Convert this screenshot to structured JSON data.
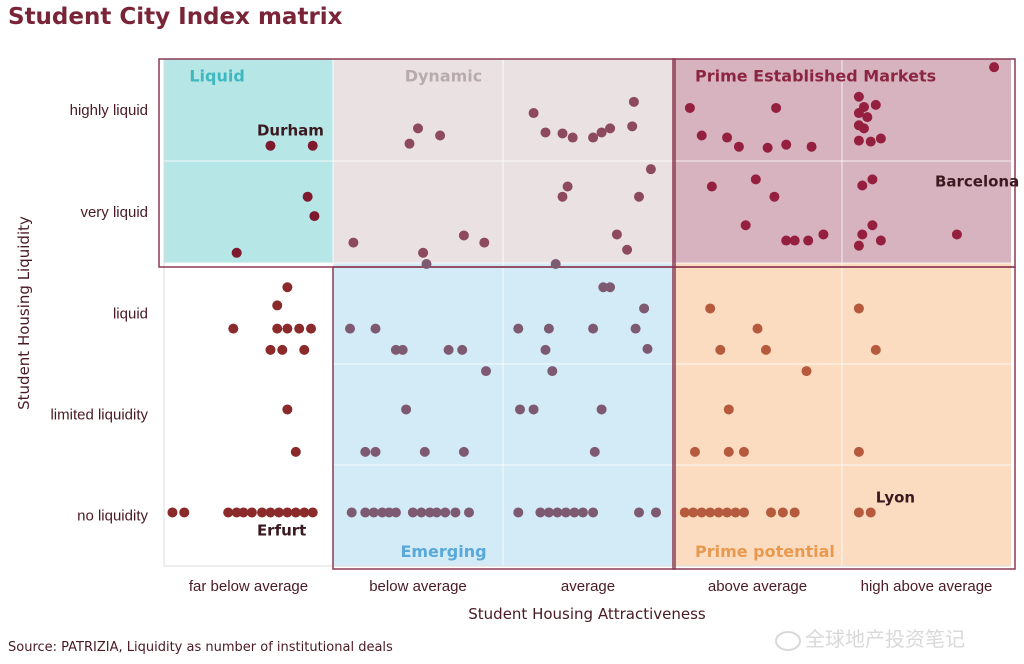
{
  "title": "Student City Index matrix",
  "source": "Source: PATRIZIA, Liquidity as number of institutional deals",
  "watermark": "全球地产投资笔记",
  "colors": {
    "liquid": "#b7e6e6",
    "dynamic": "#eae2e2",
    "prime_established": "#d7b3c0",
    "emerging": "#d3ebf7",
    "prime_potential": "#fbdcc1",
    "dot_dark": "#7e1a2e",
    "dot_rose": "#8c4a5c",
    "dot_maroon": "#941f3e",
    "dot_steel": "#7e5a72",
    "dot_orange": "#b55a3c",
    "dot_brick": "#8b2a2a",
    "frame": "#8c3a52",
    "label_liquid": "#3fb8bf",
    "label_dynamic": "#b9aab0",
    "label_prime": "#8c2540",
    "label_emerging": "#58a9da",
    "label_potential": "#e79a4f"
  },
  "chart_data": {
    "type": "scatter",
    "title": "Student City Index matrix",
    "xlabel": "Student Housing Attractiveness",
    "ylabel": "Student Housing Liquidity",
    "x_categories": [
      "far below average",
      "below average",
      "average",
      "above average",
      "high above average"
    ],
    "y_categories": [
      "highly liquid",
      "very liquid",
      "liquid",
      "limited liquidity",
      "no liquidity"
    ],
    "grid": true,
    "zones": [
      {
        "name": "Liquid",
        "x": [
          0,
          1
        ],
        "y": [
          0,
          2
        ]
      },
      {
        "name": "Dynamic",
        "x": [
          1,
          3
        ],
        "y": [
          0,
          2
        ]
      },
      {
        "name": "Prime Established Markets",
        "x": [
          3,
          5
        ],
        "y": [
          0,
          2
        ]
      },
      {
        "name": "Emerging",
        "x": [
          1,
          3
        ],
        "y": [
          2,
          5
        ]
      },
      {
        "name": "Prime potential",
        "x": [
          3,
          5
        ],
        "y": [
          2,
          5
        ]
      }
    ],
    "city_labels": [
      {
        "text": "Durham",
        "x": 0.55,
        "y": 0.7
      },
      {
        "text": "Barcelona",
        "x": 4.55,
        "y": 1.2
      },
      {
        "text": "Erfurt",
        "x": 0.55,
        "y": 4.65
      },
      {
        "text": "Lyon",
        "x": 4.2,
        "y": 4.32
      }
    ],
    "points": [
      {
        "x": 0.63,
        "y": 0.85,
        "c": "dot_dark"
      },
      {
        "x": 0.88,
        "y": 0.85,
        "c": "dot_dark"
      },
      {
        "x": 0.85,
        "y": 1.35,
        "c": "dot_dark"
      },
      {
        "x": 0.89,
        "y": 1.54,
        "c": "dot_dark"
      },
      {
        "x": 0.43,
        "y": 1.9,
        "c": "dot_dark"
      },
      {
        "x": 1.5,
        "y": 0.68,
        "c": "dot_rose"
      },
      {
        "x": 1.63,
        "y": 0.75,
        "c": "dot_rose"
      },
      {
        "x": 1.45,
        "y": 0.83,
        "c": "dot_rose"
      },
      {
        "x": 1.12,
        "y": 1.8,
        "c": "dot_rose"
      },
      {
        "x": 1.53,
        "y": 1.9,
        "c": "dot_rose"
      },
      {
        "x": 1.77,
        "y": 1.73,
        "c": "dot_rose"
      },
      {
        "x": 1.89,
        "y": 1.8,
        "c": "dot_rose"
      },
      {
        "x": 2.18,
        "y": 0.53,
        "c": "dot_rose"
      },
      {
        "x": 2.25,
        "y": 0.72,
        "c": "dot_rose"
      },
      {
        "x": 2.35,
        "y": 0.73,
        "c": "dot_rose"
      },
      {
        "x": 2.41,
        "y": 0.77,
        "c": "dot_rose"
      },
      {
        "x": 2.53,
        "y": 0.77,
        "c": "dot_rose"
      },
      {
        "x": 2.58,
        "y": 0.72,
        "c": "dot_rose"
      },
      {
        "x": 2.63,
        "y": 0.68,
        "c": "dot_rose"
      },
      {
        "x": 2.76,
        "y": 0.66,
        "c": "dot_rose"
      },
      {
        "x": 2.77,
        "y": 0.42,
        "c": "dot_rose"
      },
      {
        "x": 2.38,
        "y": 1.25,
        "c": "dot_rose"
      },
      {
        "x": 2.35,
        "y": 1.35,
        "c": "dot_rose"
      },
      {
        "x": 2.87,
        "y": 1.08,
        "c": "dot_rose"
      },
      {
        "x": 2.8,
        "y": 1.35,
        "c": "dot_rose"
      },
      {
        "x": 2.67,
        "y": 1.72,
        "c": "dot_rose"
      },
      {
        "x": 2.73,
        "y": 1.87,
        "c": "dot_rose"
      },
      {
        "x": 3.1,
        "y": 0.48,
        "c": "dot_maroon"
      },
      {
        "x": 3.61,
        "y": 0.48,
        "c": "dot_maroon"
      },
      {
        "x": 3.17,
        "y": 0.75,
        "c": "dot_maroon"
      },
      {
        "x": 3.32,
        "y": 0.77,
        "c": "dot_maroon"
      },
      {
        "x": 3.39,
        "y": 0.86,
        "c": "dot_maroon"
      },
      {
        "x": 3.56,
        "y": 0.87,
        "c": "dot_maroon"
      },
      {
        "x": 3.67,
        "y": 0.84,
        "c": "dot_maroon"
      },
      {
        "x": 3.82,
        "y": 0.86,
        "c": "dot_maroon"
      },
      {
        "x": 3.23,
        "y": 1.25,
        "c": "dot_maroon"
      },
      {
        "x": 3.49,
        "y": 1.18,
        "c": "dot_maroon"
      },
      {
        "x": 3.6,
        "y": 1.35,
        "c": "dot_maroon"
      },
      {
        "x": 3.43,
        "y": 1.63,
        "c": "dot_maroon"
      },
      {
        "x": 3.67,
        "y": 1.78,
        "c": "dot_maroon"
      },
      {
        "x": 3.72,
        "y": 1.78,
        "c": "dot_maroon"
      },
      {
        "x": 3.8,
        "y": 1.78,
        "c": "dot_maroon"
      },
      {
        "x": 3.89,
        "y": 1.72,
        "c": "dot_maroon"
      },
      {
        "x": 4.1,
        "y": 0.37,
        "c": "dot_maroon"
      },
      {
        "x": 4.13,
        "y": 0.47,
        "c": "dot_maroon"
      },
      {
        "x": 4.2,
        "y": 0.45,
        "c": "dot_maroon"
      },
      {
        "x": 4.1,
        "y": 0.53,
        "c": "dot_maroon"
      },
      {
        "x": 4.15,
        "y": 0.57,
        "c": "dot_maroon"
      },
      {
        "x": 4.1,
        "y": 0.65,
        "c": "dot_maroon"
      },
      {
        "x": 4.13,
        "y": 0.68,
        "c": "dot_maroon"
      },
      {
        "x": 4.1,
        "y": 0.8,
        "c": "dot_maroon"
      },
      {
        "x": 4.23,
        "y": 0.78,
        "c": "dot_maroon"
      },
      {
        "x": 4.17,
        "y": 0.81,
        "c": "dot_maroon"
      },
      {
        "x": 4.9,
        "y": 0.08,
        "c": "dot_maroon"
      },
      {
        "x": 4.18,
        "y": 1.18,
        "c": "dot_maroon"
      },
      {
        "x": 4.12,
        "y": 1.24,
        "c": "dot_maroon"
      },
      {
        "x": 4.18,
        "y": 1.63,
        "c": "dot_maroon"
      },
      {
        "x": 4.12,
        "y": 1.72,
        "c": "dot_maroon"
      },
      {
        "x": 4.23,
        "y": 1.78,
        "c": "dot_maroon"
      },
      {
        "x": 4.1,
        "y": 1.83,
        "c": "dot_maroon"
      },
      {
        "x": 4.68,
        "y": 1.72,
        "c": "dot_maroon"
      },
      {
        "x": 0.73,
        "y": 2.24,
        "c": "dot_brick"
      },
      {
        "x": 0.67,
        "y": 2.42,
        "c": "dot_brick"
      },
      {
        "x": 0.41,
        "y": 2.65,
        "c": "dot_brick"
      },
      {
        "x": 0.67,
        "y": 2.65,
        "c": "dot_brick"
      },
      {
        "x": 0.73,
        "y": 2.65,
        "c": "dot_brick"
      },
      {
        "x": 0.8,
        "y": 2.65,
        "c": "dot_brick"
      },
      {
        "x": 0.87,
        "y": 2.65,
        "c": "dot_brick"
      },
      {
        "x": 0.63,
        "y": 2.86,
        "c": "dot_brick"
      },
      {
        "x": 0.7,
        "y": 2.86,
        "c": "dot_brick"
      },
      {
        "x": 0.83,
        "y": 2.86,
        "c": "dot_brick"
      },
      {
        "x": 0.73,
        "y": 3.45,
        "c": "dot_brick"
      },
      {
        "x": 0.78,
        "y": 3.87,
        "c": "dot_brick"
      },
      {
        "x": 0.05,
        "y": 4.47,
        "c": "dot_brick"
      },
      {
        "x": 0.12,
        "y": 4.47,
        "c": "dot_brick"
      },
      {
        "x": 0.38,
        "y": 4.47,
        "c": "dot_brick"
      },
      {
        "x": 0.43,
        "y": 4.47,
        "c": "dot_brick"
      },
      {
        "x": 0.47,
        "y": 4.47,
        "c": "dot_brick"
      },
      {
        "x": 0.52,
        "y": 4.47,
        "c": "dot_brick"
      },
      {
        "x": 0.58,
        "y": 4.47,
        "c": "dot_brick"
      },
      {
        "x": 0.63,
        "y": 4.47,
        "c": "dot_brick"
      },
      {
        "x": 0.68,
        "y": 4.47,
        "c": "dot_brick"
      },
      {
        "x": 0.73,
        "y": 4.47,
        "c": "dot_brick"
      },
      {
        "x": 0.78,
        "y": 4.47,
        "c": "dot_brick"
      },
      {
        "x": 0.83,
        "y": 4.47,
        "c": "dot_brick"
      },
      {
        "x": 0.88,
        "y": 4.47,
        "c": "dot_brick"
      },
      {
        "x": 1.55,
        "y": 2.01,
        "c": "dot_steel"
      },
      {
        "x": 1.1,
        "y": 2.65,
        "c": "dot_steel"
      },
      {
        "x": 1.25,
        "y": 2.65,
        "c": "dot_steel"
      },
      {
        "x": 1.37,
        "y": 2.86,
        "c": "dot_steel"
      },
      {
        "x": 1.41,
        "y": 2.86,
        "c": "dot_steel"
      },
      {
        "x": 1.68,
        "y": 2.86,
        "c": "dot_steel"
      },
      {
        "x": 1.76,
        "y": 2.86,
        "c": "dot_steel"
      },
      {
        "x": 1.9,
        "y": 3.07,
        "c": "dot_steel"
      },
      {
        "x": 1.43,
        "y": 3.45,
        "c": "dot_steel"
      },
      {
        "x": 1.19,
        "y": 3.87,
        "c": "dot_steel"
      },
      {
        "x": 1.25,
        "y": 3.87,
        "c": "dot_steel"
      },
      {
        "x": 1.54,
        "y": 3.87,
        "c": "dot_steel"
      },
      {
        "x": 1.77,
        "y": 3.87,
        "c": "dot_steel"
      },
      {
        "x": 1.11,
        "y": 4.47,
        "c": "dot_steel"
      },
      {
        "x": 1.19,
        "y": 4.47,
        "c": "dot_steel"
      },
      {
        "x": 1.24,
        "y": 4.47,
        "c": "dot_steel"
      },
      {
        "x": 1.29,
        "y": 4.47,
        "c": "dot_steel"
      },
      {
        "x": 1.33,
        "y": 4.47,
        "c": "dot_steel"
      },
      {
        "x": 1.37,
        "y": 4.47,
        "c": "dot_steel"
      },
      {
        "x": 1.47,
        "y": 4.47,
        "c": "dot_steel"
      },
      {
        "x": 1.52,
        "y": 4.47,
        "c": "dot_steel"
      },
      {
        "x": 1.57,
        "y": 4.47,
        "c": "dot_steel"
      },
      {
        "x": 1.61,
        "y": 4.47,
        "c": "dot_steel"
      },
      {
        "x": 1.66,
        "y": 4.47,
        "c": "dot_steel"
      },
      {
        "x": 1.72,
        "y": 4.47,
        "c": "dot_steel"
      },
      {
        "x": 1.8,
        "y": 4.47,
        "c": "dot_steel"
      },
      {
        "x": 2.31,
        "y": 2.01,
        "c": "dot_steel"
      },
      {
        "x": 2.59,
        "y": 2.24,
        "c": "dot_steel"
      },
      {
        "x": 2.63,
        "y": 2.24,
        "c": "dot_steel"
      },
      {
        "x": 2.83,
        "y": 2.45,
        "c": "dot_steel"
      },
      {
        "x": 2.09,
        "y": 2.65,
        "c": "dot_steel"
      },
      {
        "x": 2.27,
        "y": 2.65,
        "c": "dot_steel"
      },
      {
        "x": 2.53,
        "y": 2.65,
        "c": "dot_steel"
      },
      {
        "x": 2.78,
        "y": 2.65,
        "c": "dot_steel"
      },
      {
        "x": 2.85,
        "y": 2.85,
        "c": "dot_steel"
      },
      {
        "x": 2.25,
        "y": 2.86,
        "c": "dot_steel"
      },
      {
        "x": 2.29,
        "y": 3.07,
        "c": "dot_steel"
      },
      {
        "x": 2.1,
        "y": 3.45,
        "c": "dot_steel"
      },
      {
        "x": 2.18,
        "y": 3.45,
        "c": "dot_steel"
      },
      {
        "x": 2.58,
        "y": 3.45,
        "c": "dot_steel"
      },
      {
        "x": 2.54,
        "y": 3.87,
        "c": "dot_steel"
      },
      {
        "x": 2.09,
        "y": 4.47,
        "c": "dot_steel"
      },
      {
        "x": 2.22,
        "y": 4.47,
        "c": "dot_steel"
      },
      {
        "x": 2.27,
        "y": 4.47,
        "c": "dot_steel"
      },
      {
        "x": 2.32,
        "y": 4.47,
        "c": "dot_steel"
      },
      {
        "x": 2.37,
        "y": 4.47,
        "c": "dot_steel"
      },
      {
        "x": 2.42,
        "y": 4.47,
        "c": "dot_steel"
      },
      {
        "x": 2.47,
        "y": 4.47,
        "c": "dot_steel"
      },
      {
        "x": 2.53,
        "y": 4.47,
        "c": "dot_steel"
      },
      {
        "x": 2.8,
        "y": 4.47,
        "c": "dot_steel"
      },
      {
        "x": 2.9,
        "y": 4.47,
        "c": "dot_steel"
      },
      {
        "x": 3.22,
        "y": 2.45,
        "c": "dot_orange"
      },
      {
        "x": 3.5,
        "y": 2.65,
        "c": "dot_orange"
      },
      {
        "x": 3.28,
        "y": 2.86,
        "c": "dot_orange"
      },
      {
        "x": 3.55,
        "y": 2.86,
        "c": "dot_orange"
      },
      {
        "x": 3.79,
        "y": 3.07,
        "c": "dot_orange"
      },
      {
        "x": 3.33,
        "y": 3.45,
        "c": "dot_orange"
      },
      {
        "x": 3.13,
        "y": 3.87,
        "c": "dot_orange"
      },
      {
        "x": 3.33,
        "y": 3.87,
        "c": "dot_orange"
      },
      {
        "x": 3.42,
        "y": 3.87,
        "c": "dot_orange"
      },
      {
        "x": 3.07,
        "y": 4.47,
        "c": "dot_orange"
      },
      {
        "x": 3.12,
        "y": 4.47,
        "c": "dot_orange"
      },
      {
        "x": 3.17,
        "y": 4.47,
        "c": "dot_orange"
      },
      {
        "x": 3.22,
        "y": 4.47,
        "c": "dot_orange"
      },
      {
        "x": 3.27,
        "y": 4.47,
        "c": "dot_orange"
      },
      {
        "x": 3.32,
        "y": 4.47,
        "c": "dot_orange"
      },
      {
        "x": 3.37,
        "y": 4.47,
        "c": "dot_orange"
      },
      {
        "x": 3.42,
        "y": 4.47,
        "c": "dot_orange"
      },
      {
        "x": 3.58,
        "y": 4.47,
        "c": "dot_orange"
      },
      {
        "x": 3.65,
        "y": 4.47,
        "c": "dot_orange"
      },
      {
        "x": 3.72,
        "y": 4.47,
        "c": "dot_orange"
      },
      {
        "x": 4.1,
        "y": 2.45,
        "c": "dot_orange"
      },
      {
        "x": 4.2,
        "y": 2.86,
        "c": "dot_orange"
      },
      {
        "x": 4.1,
        "y": 3.87,
        "c": "dot_orange"
      },
      {
        "x": 4.1,
        "y": 4.47,
        "c": "dot_orange"
      },
      {
        "x": 4.17,
        "y": 4.47,
        "c": "dot_orange"
      }
    ]
  }
}
